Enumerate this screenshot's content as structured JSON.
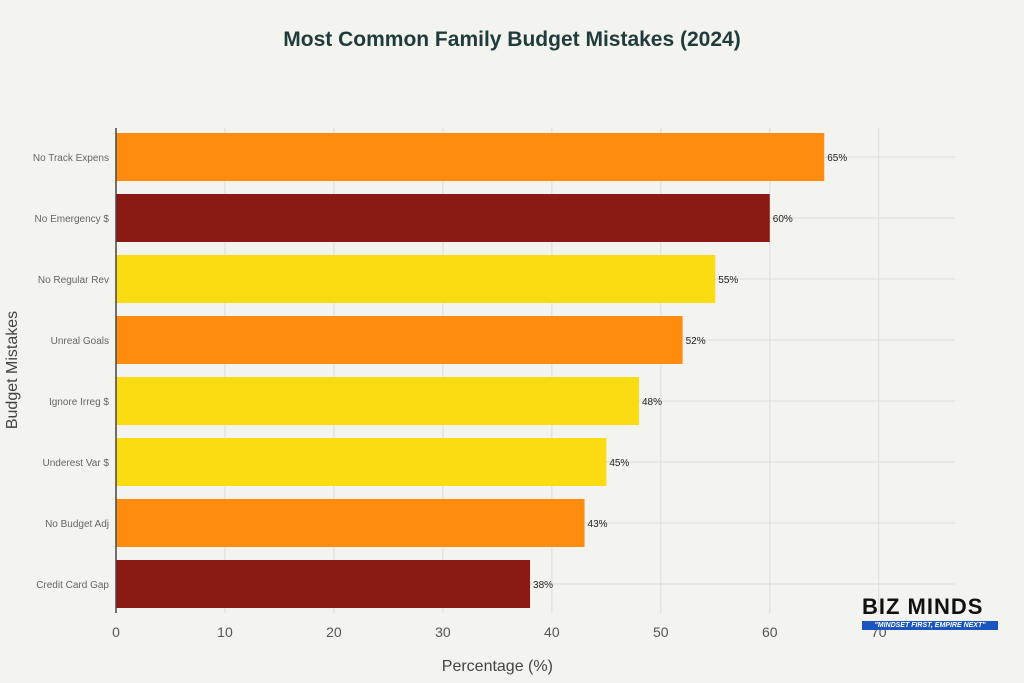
{
  "chart_data": {
    "type": "bar",
    "orientation": "horizontal",
    "title": "Most Common Family Budget Mistakes (2024)",
    "xlabel": "Percentage (%)",
    "ylabel": "Budget Mistakes",
    "xlim": [
      0,
      77
    ],
    "xticks": [
      0,
      10,
      20,
      30,
      40,
      50,
      60,
      70
    ],
    "grid": true,
    "categories": [
      "No Track Expens",
      "No Emergency $",
      "No Regular Rev",
      "Unreal Goals",
      "Ignore Irreg $",
      "Underest Var $",
      "No Budget Adj",
      "Credit Card Gap"
    ],
    "values": [
      65,
      60,
      55,
      52,
      48,
      45,
      43,
      38
    ],
    "data_labels": [
      "65%",
      "60%",
      "55%",
      "52%",
      "48%",
      "45%",
      "43%",
      "38%"
    ],
    "colors": [
      "#ff8c0f",
      "#8b1a14",
      "#fbdc12",
      "#ff8c0f",
      "#fbdc12",
      "#fbdc12",
      "#ff8c0f",
      "#8b1a14"
    ]
  },
  "logo": {
    "name": "BIZ MINDS",
    "tagline": "\"MINDSET FIRST, EMPIRE NEXT\""
  }
}
